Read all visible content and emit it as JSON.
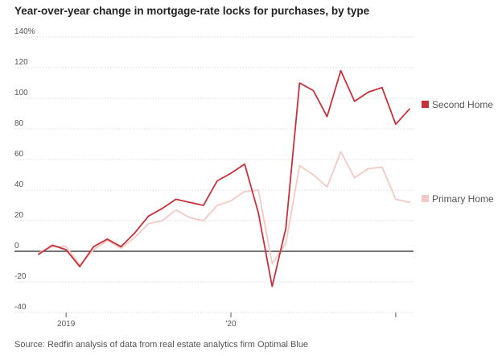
{
  "title": "Year-over-year change in mortgage-rate locks for purchases, by type",
  "source": "Source: Redfin analysis of data from real estate analytics firm Optimal Blue",
  "chart_data": {
    "type": "line",
    "title": "Year-over-year change in mortgage-rate locks for purchases, by type",
    "xlabel": "",
    "ylabel": "",
    "ylim": [
      -40,
      140
    ],
    "y_ticks": [
      "140%",
      "120",
      "100",
      "80",
      "60",
      "40",
      "20",
      "0",
      "-20",
      "-40"
    ],
    "y_tick_values": [
      140,
      120,
      100,
      80,
      60,
      40,
      20,
      0,
      -20,
      -40
    ],
    "x_ticks": [
      "2019",
      "'20"
    ],
    "x_tick_months": [
      1,
      13
    ],
    "grid": true,
    "legend": "right",
    "x_months": [
      -1,
      0,
      1,
      2,
      3,
      4,
      5,
      6,
      7,
      8,
      9,
      10,
      11,
      12,
      13,
      14,
      15,
      16,
      17,
      18,
      19,
      20,
      21,
      22,
      23,
      24,
      25,
      26
    ],
    "series": [
      {
        "name": "Second Home",
        "color": "#c8313a",
        "values": [
          -2,
          4,
          1,
          -10,
          3,
          8,
          3,
          12,
          23,
          28,
          34,
          32,
          30,
          46,
          51,
          57,
          25,
          -23,
          15,
          110,
          105,
          88,
          118,
          98,
          104,
          107,
          83,
          93
        ]
      },
      {
        "name": "Primary Home",
        "color": "#f5c9c3",
        "values": [
          -1,
          3,
          3,
          -9,
          1,
          7,
          2,
          9,
          18,
          20,
          27,
          22,
          20,
          30,
          33,
          39,
          40,
          -8,
          5,
          56,
          50,
          42,
          65,
          48,
          54,
          55,
          34,
          32
        ]
      }
    ]
  }
}
